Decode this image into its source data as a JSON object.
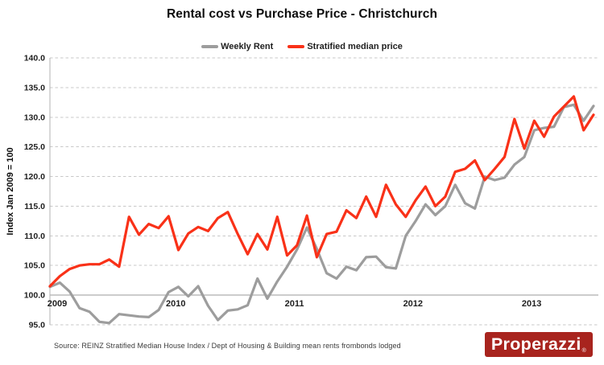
{
  "title": "Rental cost vs Purchase Price - Christchurch",
  "legend": [
    {
      "label": "Weekly Rent",
      "color": "#9d9d9d"
    },
    {
      "label": "Stratified median price",
      "color": "#f93118"
    }
  ],
  "y_axis": {
    "title": "Index Jan 2009 = 100",
    "ticks": [
      {
        "label": "140.0",
        "value": 140
      },
      {
        "label": "135.0",
        "value": 135
      },
      {
        "label": "130.0",
        "value": 130
      },
      {
        "label": "125.0",
        "value": 125
      },
      {
        "label": "120.0",
        "value": 120
      },
      {
        "label": "115.0",
        "value": 115
      },
      {
        "label": "110.0",
        "value": 110
      },
      {
        "label": "105.0",
        "value": 105
      },
      {
        "label": "100.0",
        "value": 100
      },
      {
        "label": "95.0",
        "value": 95
      }
    ]
  },
  "x_axis": {
    "labels": [
      "2009",
      "2010",
      "2011",
      "2012",
      "2013"
    ],
    "tick_months": [
      0,
      12,
      24,
      36,
      48
    ]
  },
  "source": "Source: REINZ Stratified Median House Index / Dept of Housing & Building mean rents frombonds lodged",
  "logo": {
    "text": "Properazzi",
    "mark": "®",
    "bg": "#a8241e",
    "fg": "#ffffff"
  },
  "colors": {
    "grid": "#c8c8c8",
    "baseline": "#9a9a9a",
    "spine": "#b3b3b3",
    "axis_text": "#1f1f1f"
  },
  "chart_data": {
    "type": "line",
    "title": "Rental cost vs Purchase Price - Christchurch",
    "xlabel": "",
    "ylabel": "Index Jan 2009 = 100",
    "x_start": "2009-01",
    "x_end": "2013-08",
    "frequency": "monthly",
    "ylim": [
      95,
      140
    ],
    "ytick_step": 5,
    "baseline_value": 100,
    "grid": "dashed horizontal",
    "legend_position": "top center",
    "series": [
      {
        "name": "Weekly Rent",
        "slug": "weekly-rent-line",
        "color": "#9d9d9d",
        "values": [
          101.4,
          102.1,
          100.6,
          97.8,
          97.2,
          95.5,
          95.3,
          96.8,
          96.6,
          96.4,
          96.3,
          97.5,
          100.5,
          101.4,
          99.8,
          101.5,
          98.2,
          95.8,
          97.4,
          97.6,
          98.3,
          102.8,
          99.4,
          102.3,
          104.8,
          107.7,
          111.4,
          107.8,
          103.7,
          102.8,
          104.8,
          104.2,
          106.4,
          106.5,
          104.7,
          104.5,
          110.0,
          112.5,
          115.3,
          113.5,
          115.0,
          118.6,
          115.5,
          114.6,
          120.0,
          119.4,
          119.8,
          122.0,
          123.3,
          127.8,
          128.2,
          128.4,
          131.7,
          132.1,
          129.4,
          131.9
        ]
      },
      {
        "name": "Stratified median price",
        "slug": "stratified-median-price-line",
        "color": "#f93118",
        "values": [
          101.5,
          103.2,
          104.4,
          105.0,
          105.2,
          105.2,
          106.0,
          104.8,
          113.2,
          110.2,
          112.0,
          111.3,
          113.3,
          107.6,
          110.4,
          111.5,
          110.8,
          113.0,
          114.0,
          110.3,
          106.9,
          110.3,
          107.7,
          113.2,
          106.7,
          108.4,
          113.4,
          106.4,
          110.3,
          110.7,
          114.3,
          113.0,
          116.6,
          113.2,
          118.6,
          115.3,
          113.2,
          116.0,
          118.3,
          115.0,
          116.6,
          120.8,
          121.3,
          122.7,
          119.4,
          121.3,
          123.3,
          129.7,
          124.7,
          129.4,
          126.7,
          130.1,
          131.8,
          133.5,
          127.8,
          130.4
        ]
      }
    ]
  }
}
